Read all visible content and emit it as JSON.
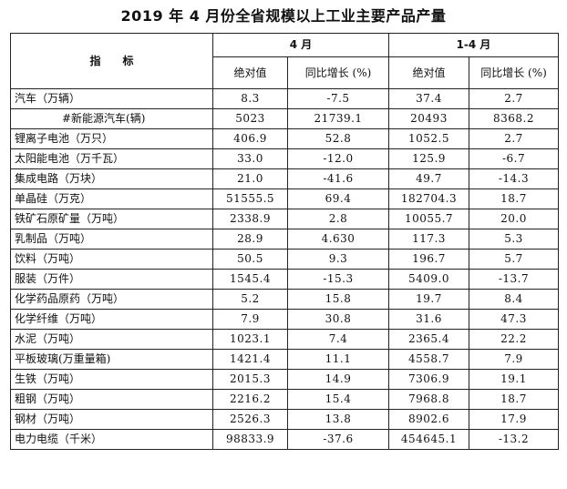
{
  "title": "2019 年 4 月份全省规模以上工业主要产品产量",
  "header": {
    "indicator": "指　　标",
    "group_month": "4 月",
    "group_ytd": "1-4 月",
    "abs_value": "绝对值",
    "yoy_growth": "同比增长 (%)"
  },
  "rows": [
    {
      "name": "汽车（万辆）",
      "m_abs": "8.3",
      "m_yoy": "-7.5",
      "y_abs": "37.4",
      "y_yoy": "2.7"
    },
    {
      "name": "#新能源汽车(辆)",
      "m_abs": "5023",
      "m_yoy": "21739.1",
      "y_abs": "20493",
      "y_yoy": "8368.2"
    },
    {
      "name": "锂离子电池（万只）",
      "m_abs": "406.9",
      "m_yoy": "52.8",
      "y_abs": "1052.5",
      "y_yoy": "2.7"
    },
    {
      "name": "太阳能电池（万千瓦）",
      "m_abs": "33.0",
      "m_yoy": "-12.0",
      "y_abs": "125.9",
      "y_yoy": "-6.7"
    },
    {
      "name": "集成电路（万块）",
      "m_abs": "21.0",
      "m_yoy": "-41.6",
      "y_abs": "49.7",
      "y_yoy": "-14.3"
    },
    {
      "name": "单晶硅（万克）",
      "m_abs": "51555.5",
      "m_yoy": "69.4",
      "y_abs": "182704.3",
      "y_yoy": "18.7"
    },
    {
      "name": "铁矿石原矿量（万吨）",
      "m_abs": "2338.9",
      "m_yoy": "2.8",
      "y_abs": "10055.7",
      "y_yoy": "20.0"
    },
    {
      "name": "乳制品（万吨）",
      "m_abs": "28.9",
      "m_yoy": "4.630",
      "y_abs": "117.3",
      "y_yoy": "5.3"
    },
    {
      "name": "饮料（万吨）",
      "m_abs": "50.5",
      "m_yoy": "9.3",
      "y_abs": "196.7",
      "y_yoy": "5.7"
    },
    {
      "name": "服装（万件）",
      "m_abs": "1545.4",
      "m_yoy": "-15.3",
      "y_abs": "5409.0",
      "y_yoy": "-13.7"
    },
    {
      "name": "化学药品原药（万吨）",
      "m_abs": "5.2",
      "m_yoy": "15.8",
      "y_abs": "19.7",
      "y_yoy": "8.4"
    },
    {
      "name": "化学纤维（万吨）",
      "m_abs": "7.9",
      "m_yoy": "30.8",
      "y_abs": "31.6",
      "y_yoy": "47.3"
    },
    {
      "name": "水泥（万吨）",
      "m_abs": "1023.1",
      "m_yoy": "7.4",
      "y_abs": "2365.4",
      "y_yoy": "22.2"
    },
    {
      "name": "平板玻璃(万重量箱)",
      "m_abs": "1421.4",
      "m_yoy": "11.1",
      "y_abs": "4558.7",
      "y_yoy": "7.9"
    },
    {
      "name": "生铁（万吨）",
      "m_abs": "2015.3",
      "m_yoy": "14.9",
      "y_abs": "7306.9",
      "y_yoy": "19.1"
    },
    {
      "name": "粗钢（万吨）",
      "m_abs": "2216.2",
      "m_yoy": "15.4",
      "y_abs": "7968.8",
      "y_yoy": "18.7"
    },
    {
      "name": "钢材（万吨）",
      "m_abs": "2526.3",
      "m_yoy": "13.8",
      "y_abs": "8902.6",
      "y_yoy": "17.9"
    },
    {
      "name": "电力电缆（千米）",
      "m_abs": "98833.9",
      "m_yoy": "-37.6",
      "y_abs": "454645.1",
      "y_yoy": "-13.2"
    }
  ]
}
